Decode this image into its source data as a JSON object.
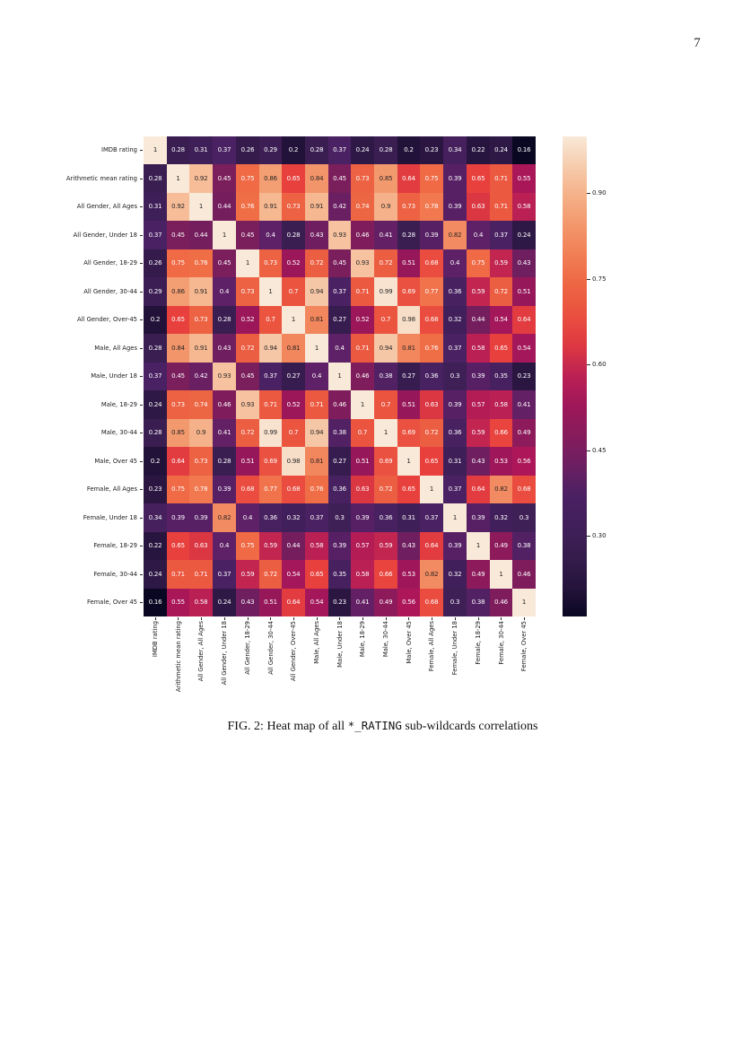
{
  "page": {
    "number": "7"
  },
  "figure": {
    "caption_label": "FIG. 2:",
    "caption_before_code": "Heat map of all",
    "caption_code": "*_RATING",
    "caption_after_code": "sub-wildcards correlations"
  },
  "chart_data": {
    "type": "heatmap",
    "colormap": "rocket",
    "annotated": true,
    "vmin": 0.16,
    "vmax": 1.0,
    "legend_position": "right-colorbar",
    "labels": [
      "IMDB rating",
      "Arithmetic mean rating",
      "All Gender, All Ages",
      "All Gender, Under 18",
      "All Gender, 18-29",
      "All Gender, 30-44",
      "All Gender, Over-45",
      "Male, All Ages",
      "Male, Under 18",
      "Male, 18-29",
      "Male, 30-44",
      "Male, Over 45",
      "Female, All Ages",
      "Female, Under 18",
      "Female, 18-29",
      "Female, 30-44",
      "Female, Over 45"
    ],
    "matrix": [
      [
        1,
        0.28,
        0.31,
        0.37,
        0.26,
        0.29,
        0.2,
        0.28,
        0.37,
        0.24,
        0.28,
        0.2,
        0.23,
        0.34,
        0.22,
        0.24,
        0.16
      ],
      [
        0.28,
        1,
        0.92,
        0.45,
        0.75,
        0.86,
        0.65,
        0.84,
        0.45,
        0.73,
        0.85,
        0.64,
        0.75,
        0.39,
        0.65,
        0.71,
        0.55
      ],
      [
        0.31,
        0.92,
        1,
        0.44,
        0.76,
        0.91,
        0.73,
        0.91,
        0.42,
        0.74,
        0.9,
        0.73,
        0.78,
        0.39,
        0.63,
        0.71,
        0.58
      ],
      [
        0.37,
        0.45,
        0.44,
        1,
        0.45,
        0.4,
        0.28,
        0.43,
        0.93,
        0.46,
        0.41,
        0.28,
        0.39,
        0.82,
        0.4,
        0.37,
        0.24
      ],
      [
        0.26,
        0.75,
        0.76,
        0.45,
        1,
        0.73,
        0.52,
        0.72,
        0.45,
        0.93,
        0.72,
        0.51,
        0.68,
        0.4,
        0.75,
        0.59,
        0.43
      ],
      [
        0.29,
        0.86,
        0.91,
        0.4,
        0.73,
        1,
        0.7,
        0.94,
        0.37,
        0.71,
        0.99,
        0.69,
        0.77,
        0.36,
        0.59,
        0.72,
        0.51
      ],
      [
        0.2,
        0.65,
        0.73,
        0.28,
        0.52,
        0.7,
        1,
        0.81,
        0.27,
        0.52,
        0.7,
        0.98,
        0.68,
        0.32,
        0.44,
        0.54,
        0.64
      ],
      [
        0.28,
        0.84,
        0.91,
        0.43,
        0.72,
        0.94,
        0.81,
        1,
        0.4,
        0.71,
        0.94,
        0.81,
        0.76,
        0.37,
        0.58,
        0.65,
        0.54
      ],
      [
        0.37,
        0.45,
        0.42,
        0.93,
        0.45,
        0.37,
        0.27,
        0.4,
        1,
        0.46,
        0.38,
        0.27,
        0.36,
        0.3,
        0.39,
        0.35,
        0.23
      ],
      [
        0.24,
        0.73,
        0.74,
        0.46,
        0.93,
        0.71,
        0.52,
        0.71,
        0.46,
        1,
        0.7,
        0.51,
        0.63,
        0.39,
        0.57,
        0.58,
        0.41
      ],
      [
        0.28,
        0.85,
        0.9,
        0.41,
        0.72,
        0.99,
        0.7,
        0.94,
        0.38,
        0.7,
        1,
        0.69,
        0.72,
        0.36,
        0.59,
        0.66,
        0.49
      ],
      [
        0.2,
        0.64,
        0.73,
        0.28,
        0.51,
        0.69,
        0.98,
        0.81,
        0.27,
        0.51,
        0.69,
        1,
        0.65,
        0.31,
        0.43,
        0.53,
        0.56
      ],
      [
        0.23,
        0.75,
        0.78,
        0.39,
        0.68,
        0.77,
        0.68,
        0.76,
        0.36,
        0.63,
        0.72,
        0.65,
        1,
        0.37,
        0.64,
        0.82,
        0.68
      ],
      [
        0.34,
        0.39,
        0.39,
        0.82,
        0.4,
        0.36,
        0.32,
        0.37,
        0.3,
        0.39,
        0.36,
        0.31,
        0.37,
        1,
        0.39,
        0.32,
        0.3
      ],
      [
        0.22,
        0.65,
        0.63,
        0.4,
        0.75,
        0.59,
        0.44,
        0.58,
        0.39,
        0.57,
        0.59,
        0.43,
        0.64,
        0.39,
        1,
        0.49,
        0.38
      ],
      [
        0.24,
        0.71,
        0.71,
        0.37,
        0.59,
        0.72,
        0.54,
        0.65,
        0.35,
        0.58,
        0.66,
        0.53,
        0.82,
        0.32,
        0.49,
        1,
        0.46
      ],
      [
        0.16,
        0.55,
        0.58,
        0.24,
        0.43,
        0.51,
        0.64,
        0.54,
        0.23,
        0.41,
        0.49,
        0.56,
        0.68,
        0.3,
        0.38,
        0.46,
        1
      ]
    ],
    "colorbar": {
      "tick_values": [
        0.9,
        0.75,
        0.6,
        0.45,
        0.3
      ],
      "tick_labels": [
        "0.90",
        "0.75",
        "0.60",
        "0.45",
        "0.30"
      ]
    },
    "colors": {
      "cmap_low": "#0A0722",
      "cmap_high": "#F8E9D8",
      "annotation_dark": "#262626",
      "annotation_light": "#ffffff"
    }
  }
}
